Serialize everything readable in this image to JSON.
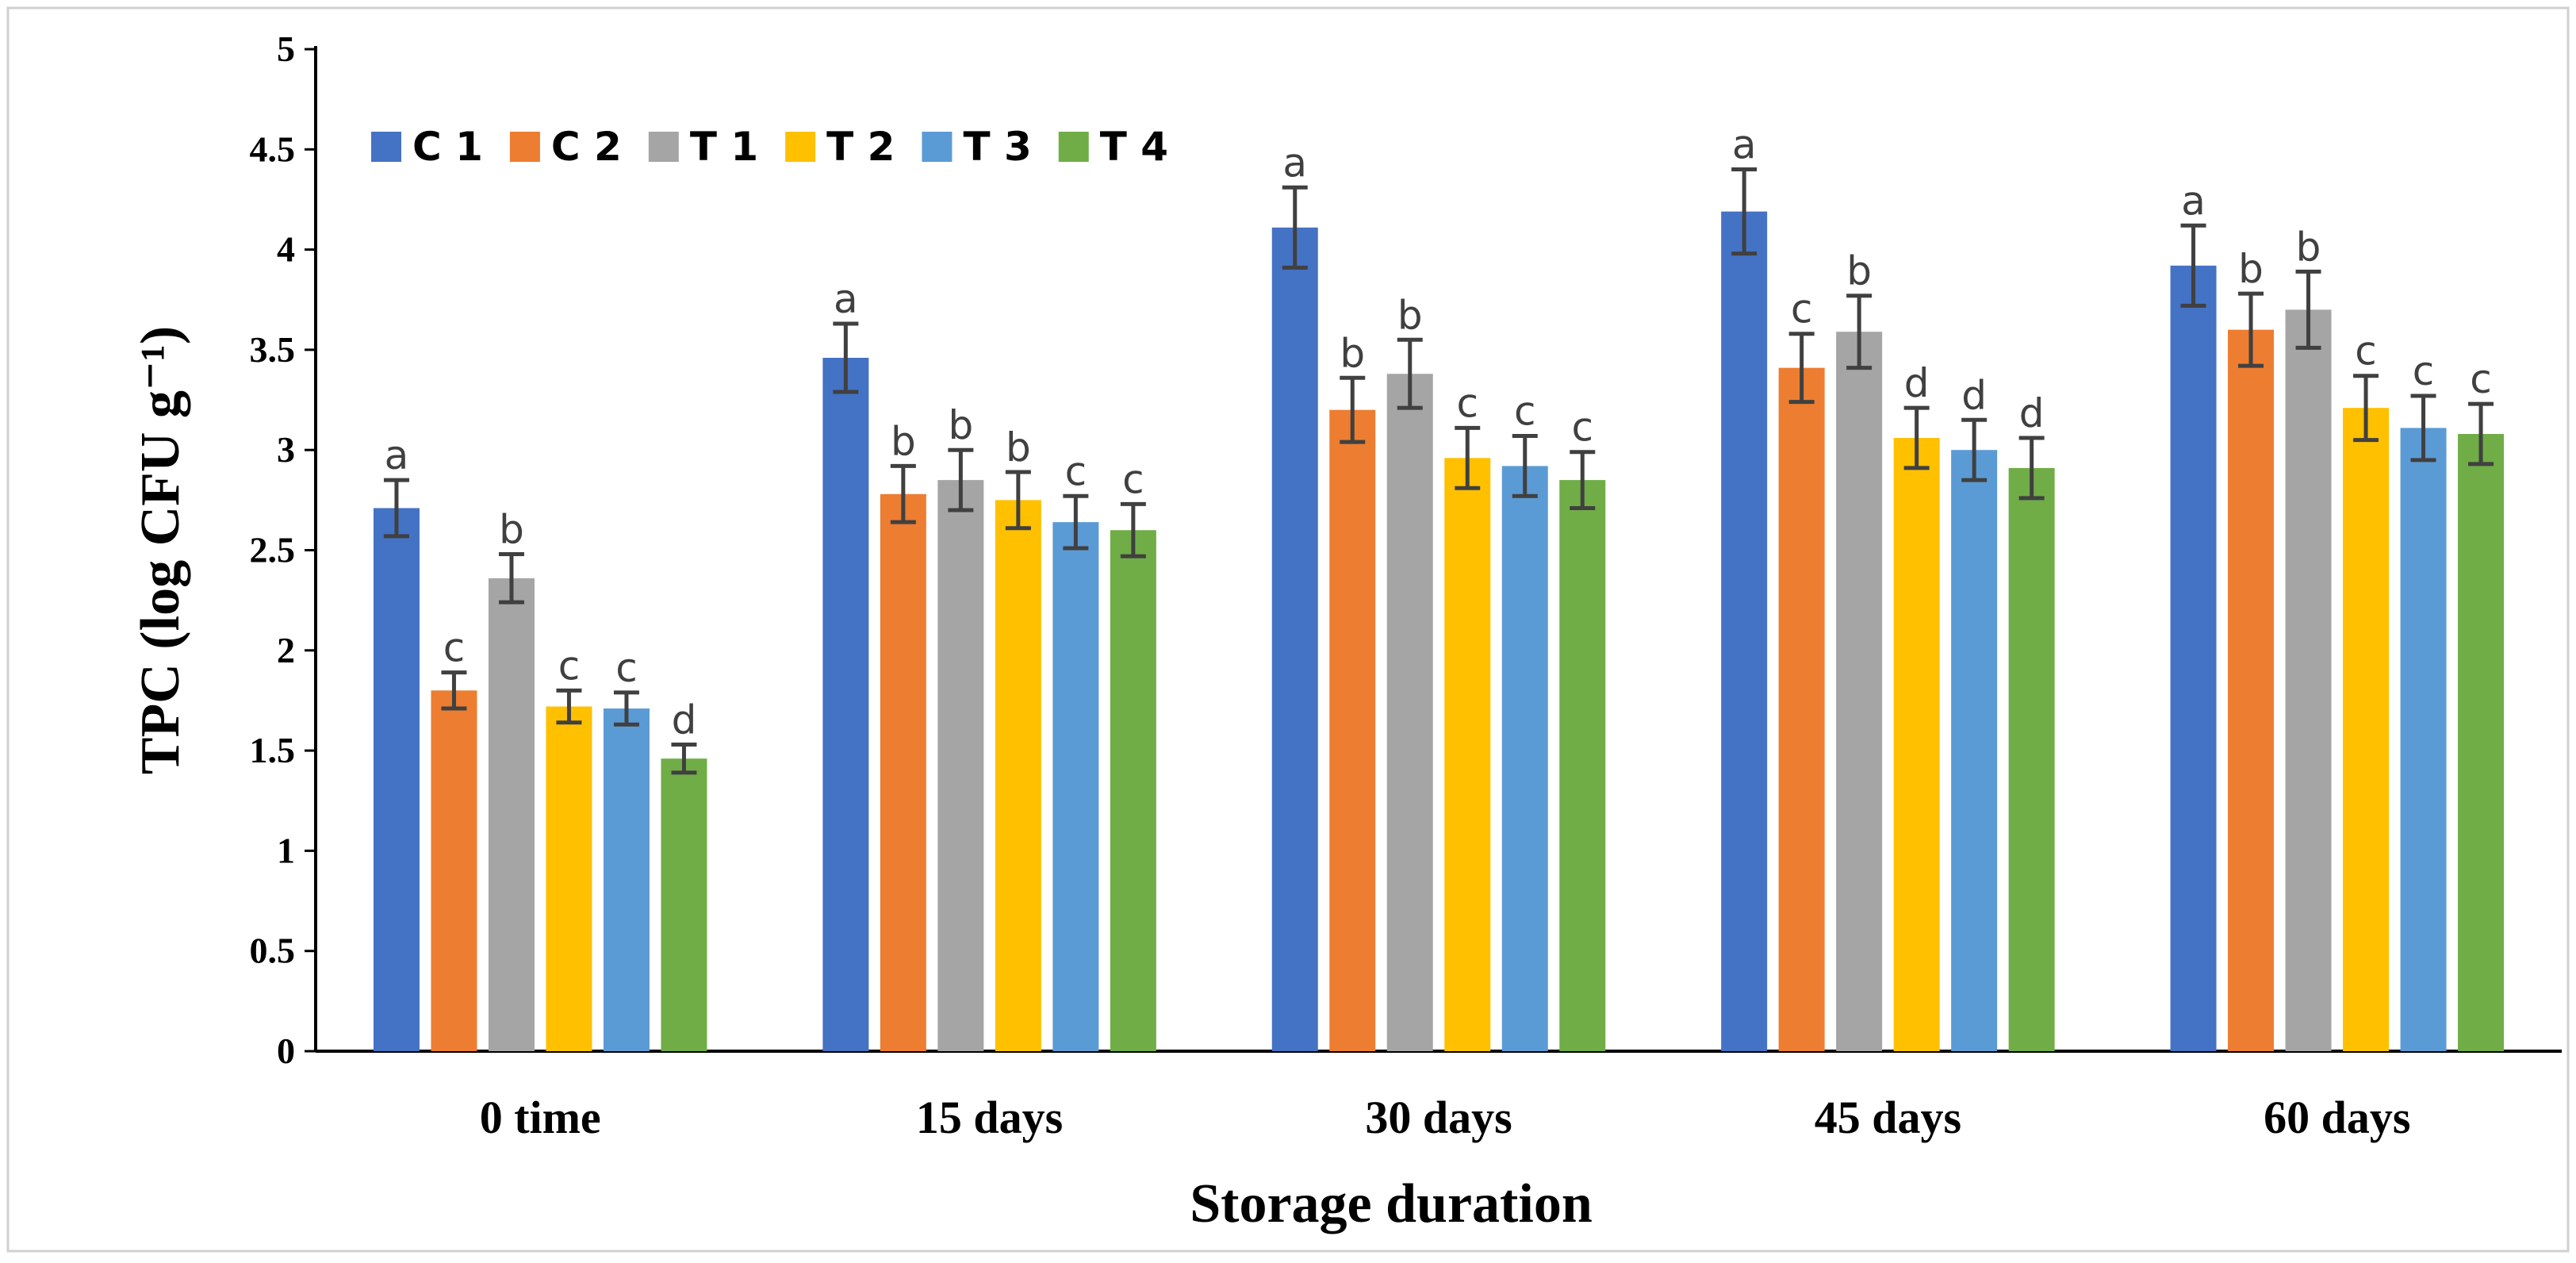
{
  "chart_data": {
    "type": "bar",
    "title": "",
    "xlabel": "Storage duration",
    "ylabel": "TPC (log CFU g⁻¹)",
    "ylim": [
      0,
      5
    ],
    "yticks": [
      "0",
      "0.5",
      "1",
      "1.5",
      "2",
      "2.5",
      "3",
      "3.5",
      "4",
      "4.5",
      "5"
    ],
    "grid": false,
    "legend_position": "top-left",
    "categories": [
      "0 time",
      "15 days",
      "30 days",
      "45 days",
      "60 days"
    ],
    "series": [
      {
        "name": "C 1",
        "color": "#4472C4",
        "values": [
          2.71,
          3.46,
          4.11,
          4.19,
          3.92
        ],
        "errors": [
          0.14,
          0.17,
          0.2,
          0.21,
          0.2
        ],
        "labels": [
          "a",
          "a",
          "a",
          "a",
          "a"
        ]
      },
      {
        "name": "C 2",
        "color": "#ED7D31",
        "values": [
          1.8,
          2.78,
          3.2,
          3.41,
          3.6
        ],
        "errors": [
          0.09,
          0.14,
          0.16,
          0.17,
          0.18
        ],
        "labels": [
          "c",
          "b",
          "b",
          "c",
          "b"
        ]
      },
      {
        "name": "T 1",
        "color": "#A5A5A5",
        "values": [
          2.36,
          2.85,
          3.38,
          3.59,
          3.7
        ],
        "errors": [
          0.12,
          0.15,
          0.17,
          0.18,
          0.19
        ],
        "labels": [
          "b",
          "b",
          "b",
          "b",
          "b"
        ]
      },
      {
        "name": "T 2",
        "color": "#FFC000",
        "values": [
          1.72,
          2.75,
          2.96,
          3.06,
          3.21
        ],
        "errors": [
          0.08,
          0.14,
          0.15,
          0.15,
          0.16
        ],
        "labels": [
          "c",
          "b",
          "c",
          "d",
          "c"
        ]
      },
      {
        "name": "T 3",
        "color": "#5B9BD5",
        "values": [
          1.71,
          2.64,
          2.92,
          3.0,
          3.11
        ],
        "errors": [
          0.08,
          0.13,
          0.15,
          0.15,
          0.16
        ],
        "labels": [
          "c",
          "c",
          "c",
          "d",
          "c"
        ]
      },
      {
        "name": "T 4",
        "color": "#70AD47",
        "values": [
          1.46,
          2.6,
          2.85,
          2.91,
          3.08
        ],
        "errors": [
          0.07,
          0.13,
          0.14,
          0.15,
          0.15
        ],
        "labels": [
          "d",
          "c",
          "c",
          "d",
          "c"
        ]
      }
    ]
  }
}
